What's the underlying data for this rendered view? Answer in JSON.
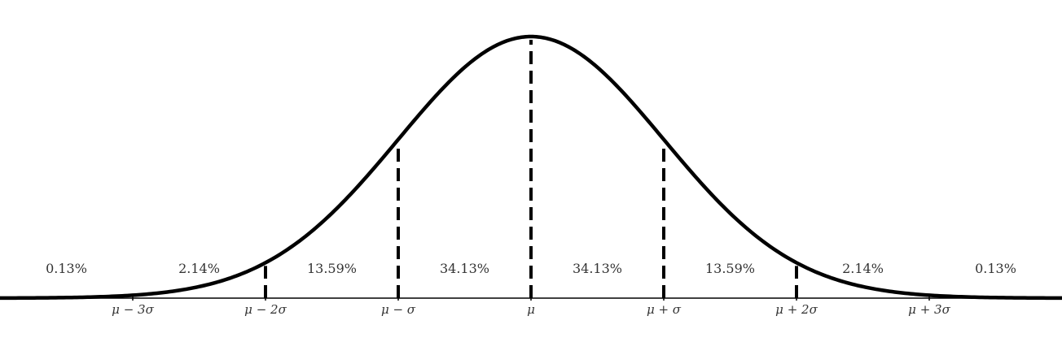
{
  "chart_data": {
    "type": "line",
    "title": "",
    "xlabel": "",
    "ylabel": "",
    "xlim": [
      -4,
      4
    ],
    "grid": false,
    "curve": "standard normal density",
    "line_color": "#000000",
    "text_color": "#333333",
    "tick_positions": [
      -3,
      -2,
      -1,
      0,
      1,
      2,
      3
    ],
    "tick_labels": [
      "μ − 3σ",
      "μ − 2σ",
      "μ − σ",
      "μ",
      "μ + σ",
      "μ + 2σ",
      "μ + 3σ"
    ],
    "dashed_lines_at": [
      -2,
      -1,
      0,
      1,
      2
    ],
    "region_labels": [
      {
        "center": -3.5,
        "value": "0.13%"
      },
      {
        "center": -2.5,
        "value": "2.14%"
      },
      {
        "center": -1.5,
        "value": "13.59%"
      },
      {
        "center": -0.5,
        "value": "34.13%"
      },
      {
        "center": 0.5,
        "value": "34.13%"
      },
      {
        "center": 1.5,
        "value": "13.59%"
      },
      {
        "center": 2.5,
        "value": "2.14%"
      },
      {
        "center": 3.5,
        "value": "0.13%"
      }
    ]
  }
}
